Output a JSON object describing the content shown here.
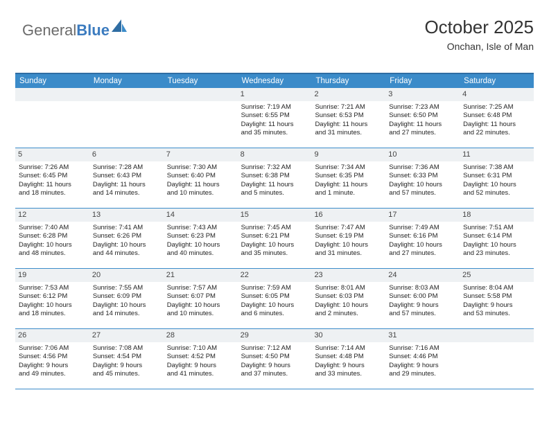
{
  "logo": {
    "text1": "General",
    "text2": "Blue"
  },
  "header": {
    "title": "October 2025",
    "subtitle": "Onchan, Isle of Man"
  },
  "colors": {
    "header_bg": "#3b8bc9",
    "header_border": "#2f6da3",
    "week_border": "#3b8bc9",
    "daynum_bg": "#eef1f3",
    "text": "#222222",
    "logo_gray": "#6b6b6b",
    "logo_blue": "#3b7bbf"
  },
  "day_names": [
    "Sunday",
    "Monday",
    "Tuesday",
    "Wednesday",
    "Thursday",
    "Friday",
    "Saturday"
  ],
  "weeks": [
    [
      {
        "blank": true
      },
      {
        "blank": true
      },
      {
        "blank": true
      },
      {
        "n": "1",
        "sr": "7:19 AM",
        "ss": "6:55 PM",
        "d1": "11 hours",
        "d2": "and 35 minutes."
      },
      {
        "n": "2",
        "sr": "7:21 AM",
        "ss": "6:53 PM",
        "d1": "11 hours",
        "d2": "and 31 minutes."
      },
      {
        "n": "3",
        "sr": "7:23 AM",
        "ss": "6:50 PM",
        "d1": "11 hours",
        "d2": "and 27 minutes."
      },
      {
        "n": "4",
        "sr": "7:25 AM",
        "ss": "6:48 PM",
        "d1": "11 hours",
        "d2": "and 22 minutes."
      }
    ],
    [
      {
        "n": "5",
        "sr": "7:26 AM",
        "ss": "6:45 PM",
        "d1": "11 hours",
        "d2": "and 18 minutes."
      },
      {
        "n": "6",
        "sr": "7:28 AM",
        "ss": "6:43 PM",
        "d1": "11 hours",
        "d2": "and 14 minutes."
      },
      {
        "n": "7",
        "sr": "7:30 AM",
        "ss": "6:40 PM",
        "d1": "11 hours",
        "d2": "and 10 minutes."
      },
      {
        "n": "8",
        "sr": "7:32 AM",
        "ss": "6:38 PM",
        "d1": "11 hours",
        "d2": "and 5 minutes."
      },
      {
        "n": "9",
        "sr": "7:34 AM",
        "ss": "6:35 PM",
        "d1": "11 hours",
        "d2": "and 1 minute."
      },
      {
        "n": "10",
        "sr": "7:36 AM",
        "ss": "6:33 PM",
        "d1": "10 hours",
        "d2": "and 57 minutes."
      },
      {
        "n": "11",
        "sr": "7:38 AM",
        "ss": "6:31 PM",
        "d1": "10 hours",
        "d2": "and 52 minutes."
      }
    ],
    [
      {
        "n": "12",
        "sr": "7:40 AM",
        "ss": "6:28 PM",
        "d1": "10 hours",
        "d2": "and 48 minutes."
      },
      {
        "n": "13",
        "sr": "7:41 AM",
        "ss": "6:26 PM",
        "d1": "10 hours",
        "d2": "and 44 minutes."
      },
      {
        "n": "14",
        "sr": "7:43 AM",
        "ss": "6:23 PM",
        "d1": "10 hours",
        "d2": "and 40 minutes."
      },
      {
        "n": "15",
        "sr": "7:45 AM",
        "ss": "6:21 PM",
        "d1": "10 hours",
        "d2": "and 35 minutes."
      },
      {
        "n": "16",
        "sr": "7:47 AM",
        "ss": "6:19 PM",
        "d1": "10 hours",
        "d2": "and 31 minutes."
      },
      {
        "n": "17",
        "sr": "7:49 AM",
        "ss": "6:16 PM",
        "d1": "10 hours",
        "d2": "and 27 minutes."
      },
      {
        "n": "18",
        "sr": "7:51 AM",
        "ss": "6:14 PM",
        "d1": "10 hours",
        "d2": "and 23 minutes."
      }
    ],
    [
      {
        "n": "19",
        "sr": "7:53 AM",
        "ss": "6:12 PM",
        "d1": "10 hours",
        "d2": "and 18 minutes."
      },
      {
        "n": "20",
        "sr": "7:55 AM",
        "ss": "6:09 PM",
        "d1": "10 hours",
        "d2": "and 14 minutes."
      },
      {
        "n": "21",
        "sr": "7:57 AM",
        "ss": "6:07 PM",
        "d1": "10 hours",
        "d2": "and 10 minutes."
      },
      {
        "n": "22",
        "sr": "7:59 AM",
        "ss": "6:05 PM",
        "d1": "10 hours",
        "d2": "and 6 minutes."
      },
      {
        "n": "23",
        "sr": "8:01 AM",
        "ss": "6:03 PM",
        "d1": "10 hours",
        "d2": "and 2 minutes."
      },
      {
        "n": "24",
        "sr": "8:03 AM",
        "ss": "6:00 PM",
        "d1": "9 hours",
        "d2": "and 57 minutes."
      },
      {
        "n": "25",
        "sr": "8:04 AM",
        "ss": "5:58 PM",
        "d1": "9 hours",
        "d2": "and 53 minutes."
      }
    ],
    [
      {
        "n": "26",
        "sr": "7:06 AM",
        "ss": "4:56 PM",
        "d1": "9 hours",
        "d2": "and 49 minutes."
      },
      {
        "n": "27",
        "sr": "7:08 AM",
        "ss": "4:54 PM",
        "d1": "9 hours",
        "d2": "and 45 minutes."
      },
      {
        "n": "28",
        "sr": "7:10 AM",
        "ss": "4:52 PM",
        "d1": "9 hours",
        "d2": "and 41 minutes."
      },
      {
        "n": "29",
        "sr": "7:12 AM",
        "ss": "4:50 PM",
        "d1": "9 hours",
        "d2": "and 37 minutes."
      },
      {
        "n": "30",
        "sr": "7:14 AM",
        "ss": "4:48 PM",
        "d1": "9 hours",
        "d2": "and 33 minutes."
      },
      {
        "n": "31",
        "sr": "7:16 AM",
        "ss": "4:46 PM",
        "d1": "9 hours",
        "d2": "and 29 minutes."
      },
      {
        "blank": true
      }
    ]
  ],
  "labels": {
    "sunrise": "Sunrise:",
    "sunset": "Sunset:",
    "daylight": "Daylight:"
  }
}
